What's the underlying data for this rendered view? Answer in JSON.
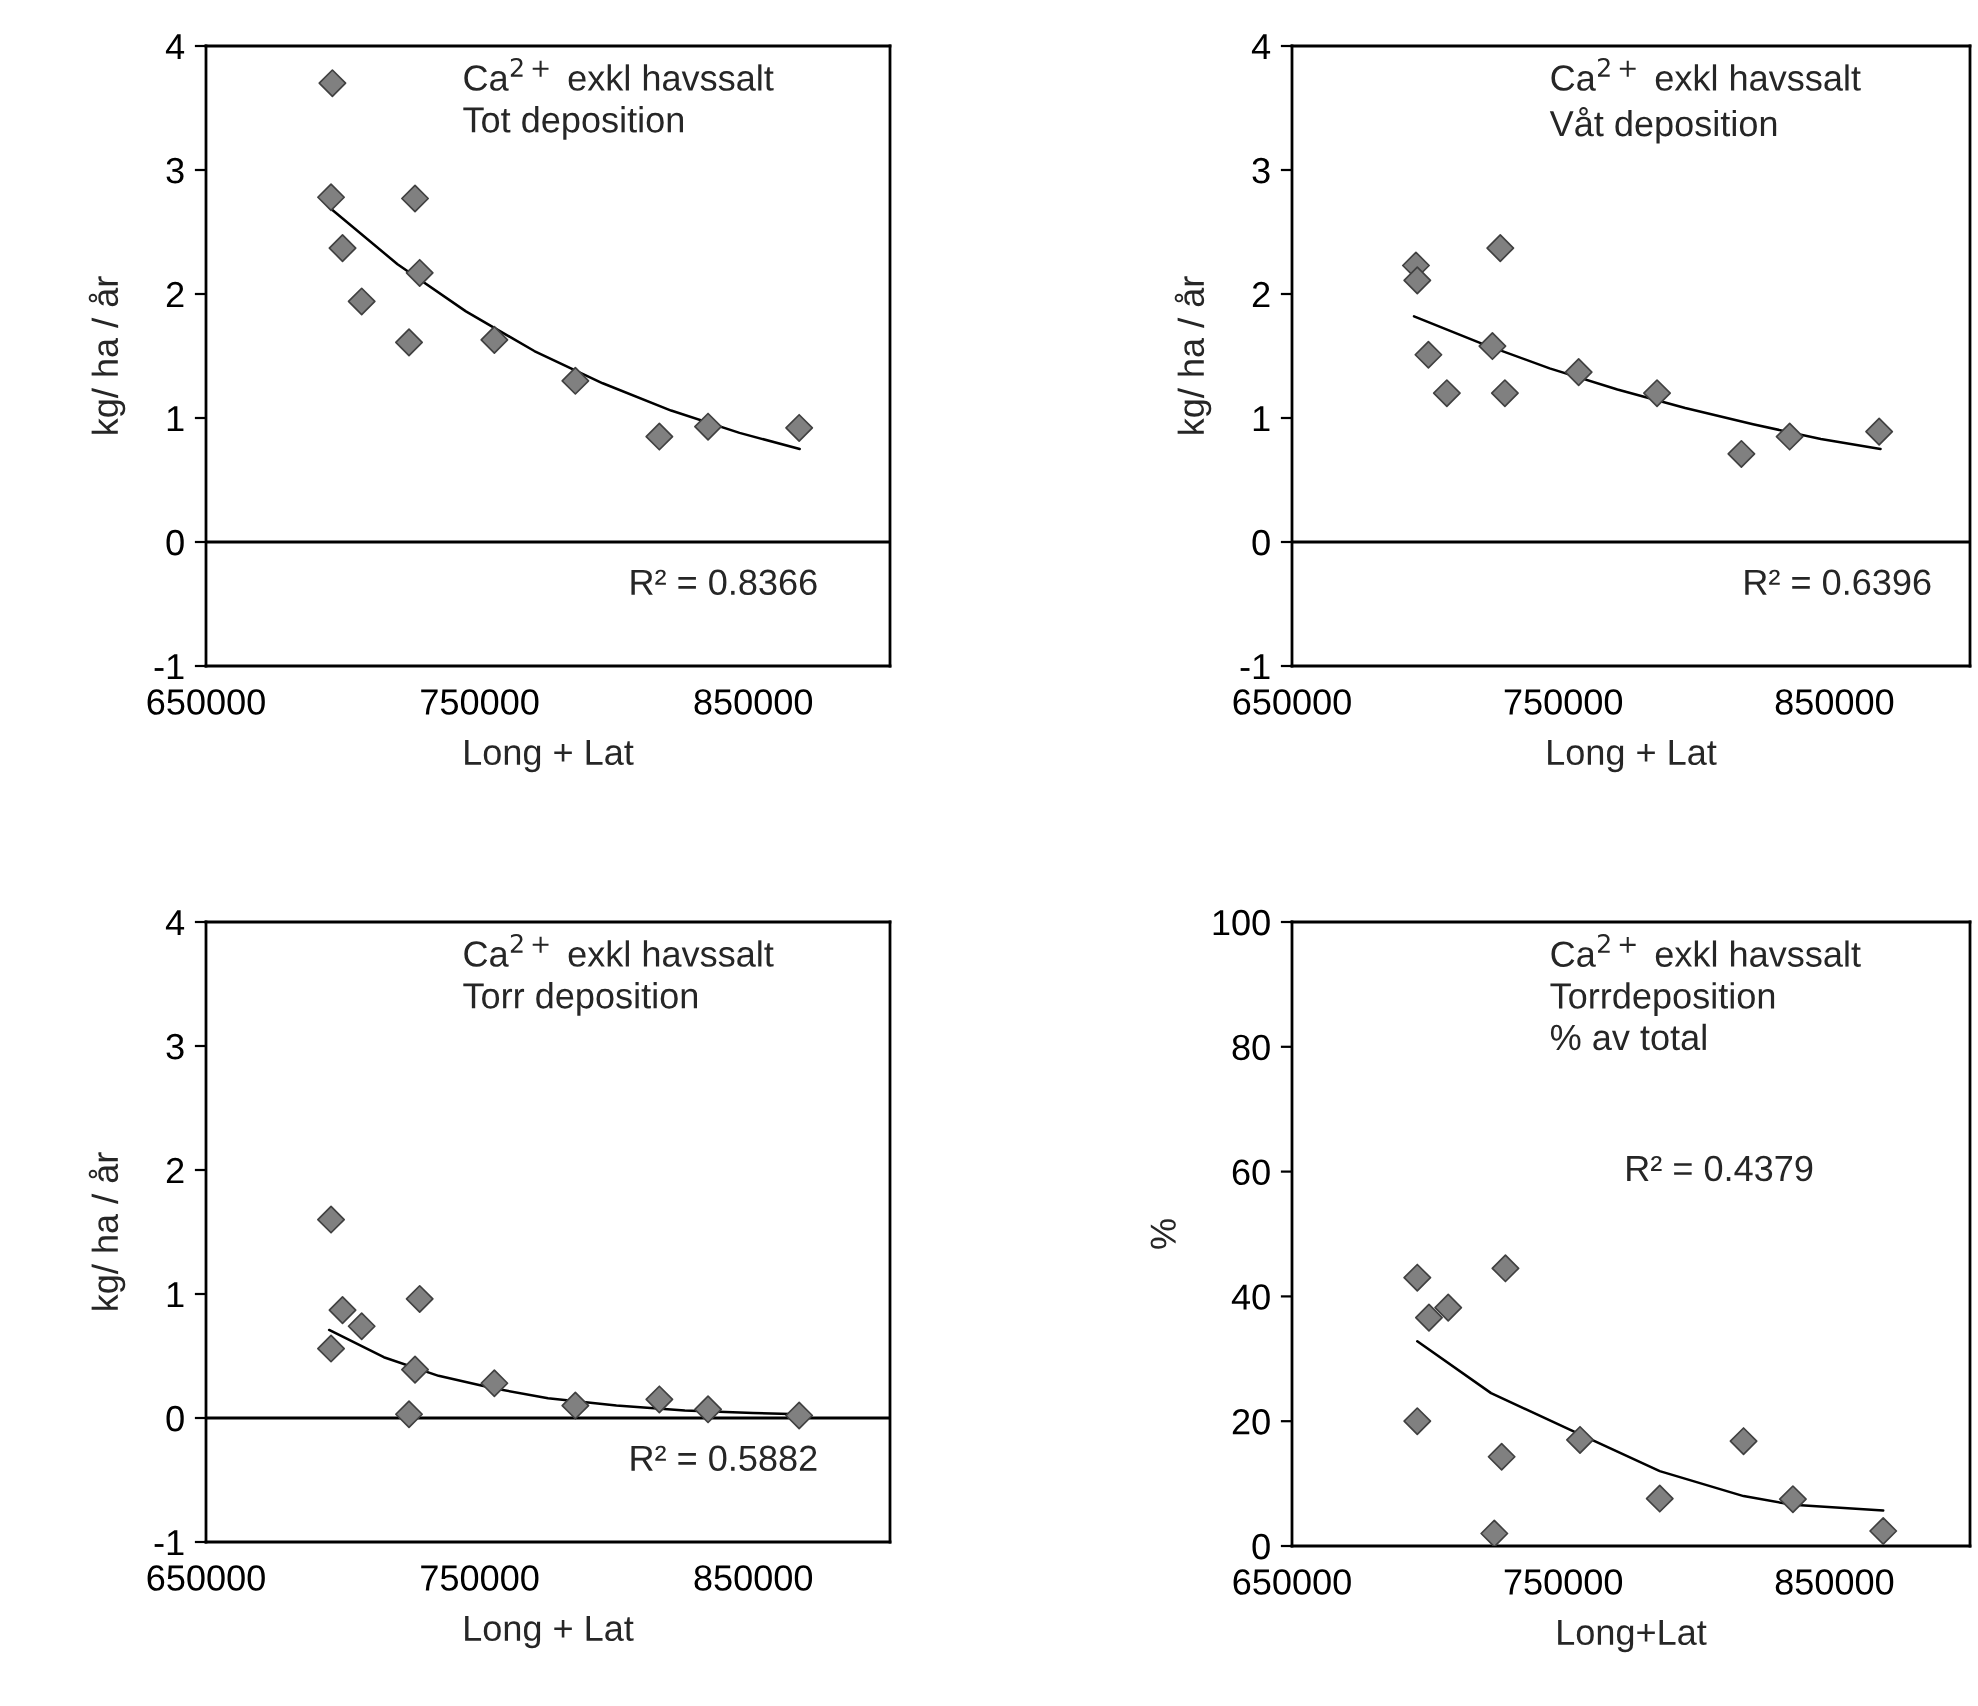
{
  "chart_data": [
    {
      "type": "scatter",
      "ylabel": "kg/ ha / år",
      "xlabel": "Long + Lat",
      "xlim": [
        650000,
        900000
      ],
      "xticks": [
        650000,
        750000,
        850000
      ],
      "ylim": [
        -1,
        4
      ],
      "yticks": [
        -1,
        0,
        1,
        2,
        3,
        4
      ],
      "grid": false,
      "ref_lines": [
        {
          "axis": "y",
          "value": 0
        }
      ],
      "annotations": [
        "Ca$^{2+}$ exkl havssalt\nTot deposition",
        "R² = 0.8366"
      ],
      "series": [
        {
          "marker": "diamond",
          "color": "#808080",
          "x": [
            696200,
            695700,
            699900,
            706900,
            724200,
            726400,
            728100,
            755400,
            785000,
            815700,
            833500,
            866800
          ],
          "values": [
            3.7,
            2.78,
            2.37,
            1.94,
            1.61,
            2.77,
            2.17,
            1.63,
            1.3,
            0.85,
            0.93,
            0.92
          ]
        },
        {
          "type": "line",
          "color": "#000000",
          "x": [
            695000,
            720000,
            745000,
            770000,
            795000,
            820000,
            845000,
            867000
          ],
          "values": [
            2.7,
            2.24,
            1.86,
            1.54,
            1.28,
            1.06,
            0.88,
            0.75
          ]
        }
      ]
    },
    {
      "type": "scatter",
      "ylabel": "kg/ ha / år",
      "xlabel": "Long + Lat",
      "xlim": [
        650000,
        900000
      ],
      "xticks": [
        650000,
        750000,
        850000
      ],
      "ylim": [
        -1,
        4
      ],
      "yticks": [
        -1,
        0,
        1,
        2,
        3,
        4
      ],
      "grid": false,
      "ref_lines": [
        {
          "axis": "y",
          "value": 0
        }
      ],
      "annotations": [
        "Ca$^{2+}$ exkl havssalt\nVåt deposition",
        "R² = 0.6396"
      ],
      "series": [
        {
          "marker": "diamond",
          "color": "#808080",
          "x": [
            695700,
            696200,
            700300,
            707100,
            723900,
            726800,
            728500,
            755700,
            784600,
            815700,
            833500,
            866500
          ],
          "values": [
            2.23,
            2.11,
            1.51,
            1.2,
            1.58,
            2.37,
            1.2,
            1.37,
            1.2,
            0.71,
            0.85,
            0.89
          ]
        },
        {
          "type": "line",
          "color": "#000000",
          "x": [
            695000,
            720000,
            745000,
            770000,
            795000,
            820000,
            845000,
            867000
          ],
          "values": [
            1.82,
            1.6,
            1.4,
            1.23,
            1.08,
            0.95,
            0.83,
            0.75
          ]
        }
      ]
    },
    {
      "type": "scatter",
      "ylabel": "kg/ ha / år",
      "xlabel": "Long + Lat",
      "xlim": [
        650000,
        900000
      ],
      "xticks": [
        650000,
        750000,
        850000
      ],
      "ylim": [
        -1,
        4
      ],
      "yticks": [
        -1,
        0,
        1,
        2,
        3,
        4
      ],
      "grid": false,
      "ref_lines": [
        {
          "axis": "y",
          "value": 0
        }
      ],
      "annotations": [
        "Ca$^{2+}$ exkl havssalt\nTorr deposition",
        "R² = 0.5882"
      ],
      "series": [
        {
          "marker": "diamond",
          "color": "#808080",
          "x": [
            695700,
            695700,
            699900,
            706900,
            724200,
            726400,
            728100,
            755400,
            785000,
            815700,
            833500,
            866800
          ],
          "values": [
            1.6,
            0.56,
            0.87,
            0.74,
            0.03,
            0.39,
            0.96,
            0.28,
            0.1,
            0.15,
            0.07,
            0.02
          ]
        },
        {
          "type": "line",
          "color": "#000000",
          "x": [
            695000,
            715000,
            735000,
            755000,
            775000,
            800000,
            825000,
            850000,
            867000
          ],
          "values": [
            0.71,
            0.49,
            0.34,
            0.24,
            0.16,
            0.1,
            0.06,
            0.04,
            0.03
          ]
        }
      ]
    },
    {
      "type": "scatter",
      "ylabel": "%",
      "xlabel": "Long+Lat",
      "xlim": [
        650000,
        900000
      ],
      "xticks": [
        650000,
        750000,
        850000
      ],
      "ylim": [
        0,
        100
      ],
      "yticks": [
        0,
        20,
        40,
        60,
        80,
        100
      ],
      "grid": false,
      "annotations": [
        "Ca$^{2+}$ exkl havssalt\nTorrdeposition\n% av total",
        "R² = 0.4379"
      ],
      "series": [
        {
          "marker": "diamond",
          "color": "#808080",
          "x": [
            696200,
            696200,
            700500,
            707600,
            724600,
            727300,
            728700,
            756200,
            785600,
            816500,
            834700,
            868000
          ],
          "values": [
            43.0,
            20.0,
            36.6,
            38.2,
            2.0,
            14.3,
            44.5,
            17.0,
            7.6,
            16.8,
            7.5,
            2.4
          ]
        },
        {
          "type": "line",
          "color": "#000000",
          "x": [
            696200,
            723400,
            756200,
            785600,
            816500,
            834700,
            868000
          ],
          "values": [
            32.8,
            24.5,
            17.9,
            12.0,
            8.0,
            6.6,
            5.7
          ]
        }
      ]
    }
  ]
}
